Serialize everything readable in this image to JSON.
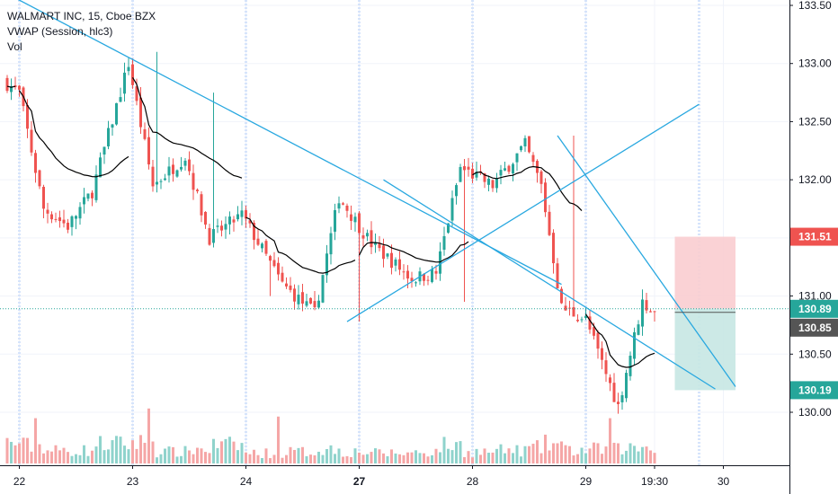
{
  "header": {
    "symbol_line": "WALMART INC, 15, Cboe BZX",
    "vwap_line": "VWAP (Session, hlc3)",
    "vol_line": "Vol"
  },
  "colors": {
    "up": "#26a69a",
    "down": "#ef5350",
    "vwap": "#000000",
    "trendline": "#29a8e0",
    "session_line": "#d6e4fb",
    "price_line": "#26a69a",
    "stop_zone": "#f9cdd0",
    "target_zone": "#c7e7e3"
  },
  "price_tags": {
    "stop": "131.51",
    "current": "130.89",
    "vwap": "130.85",
    "target": "130.19"
  },
  "chart_data": {
    "type": "candlestick",
    "title": "WALMART INC, 15, Cboe BZX",
    "y_ticks": [
      "133.50",
      "133.00",
      "132.50",
      "132.00",
      "131.50",
      "131.00",
      "130.50",
      "130.00"
    ],
    "ylim": [
      129.6,
      133.55
    ],
    "x_ticks": [
      {
        "label": "22",
        "bold": false,
        "bar": 3
      },
      {
        "label": "23",
        "bold": false,
        "bar": 31
      },
      {
        "label": "24",
        "bold": false,
        "bar": 59
      },
      {
        "label": "27",
        "bold": true,
        "bar": 87
      },
      {
        "label": "28",
        "bold": false,
        "bar": 115
      },
      {
        "label": "29",
        "bold": false,
        "bar": 143
      },
      {
        "label": "19:30",
        "bold": false,
        "bar": 160
      },
      {
        "label": "30",
        "bold": false,
        "bar": 177
      }
    ],
    "session_starts": [
      3,
      31,
      59,
      87,
      115,
      143,
      171
    ],
    "current_price": 130.89,
    "key_points": {
      "open": 132.9,
      "day23_high": 133.1,
      "day26_low": 130.78,
      "day28_high": 132.38,
      "day29_low": 129.92,
      "last": 130.85
    },
    "segments": [
      {
        "bars": 4,
        "start": 132.85,
        "end": 132.75,
        "vol": 1.6
      },
      {
        "bars": 6,
        "start": 132.75,
        "end": 131.75,
        "vol": 1.4
      },
      {
        "bars": 6,
        "start": 131.75,
        "end": 131.6,
        "vol": 1.0
      },
      {
        "bars": 6,
        "start": 131.6,
        "end": 131.9,
        "vol": 1.0
      },
      {
        "bars": 9,
        "start": 131.9,
        "end": 133.0,
        "vol": 1.5
      },
      {
        "bars": 6,
        "start": 133.0,
        "end": 131.95,
        "vol": 1.6
      },
      {
        "bars": 8,
        "start": 131.95,
        "end": 132.2,
        "vol": 0.9
      },
      {
        "bars": 6,
        "start": 132.2,
        "end": 131.5,
        "vol": 1.1
      },
      {
        "bars": 8,
        "start": 131.5,
        "end": 131.7,
        "vol": 1.4
      },
      {
        "bars": 10,
        "start": 131.7,
        "end": 131.1,
        "vol": 0.8
      },
      {
        "bars": 8,
        "start": 131.1,
        "end": 130.85,
        "vol": 0.9
      },
      {
        "bars": 6,
        "start": 130.85,
        "end": 131.85,
        "vol": 1.1
      },
      {
        "bars": 8,
        "start": 131.85,
        "end": 131.45,
        "vol": 0.9
      },
      {
        "bars": 10,
        "start": 131.45,
        "end": 131.15,
        "vol": 0.8
      },
      {
        "bars": 6,
        "start": 131.15,
        "end": 131.2,
        "vol": 0.9
      },
      {
        "bars": 6,
        "start": 131.2,
        "end": 132.1,
        "vol": 1.4
      },
      {
        "bars": 8,
        "start": 132.1,
        "end": 131.95,
        "vol": 0.9
      },
      {
        "bars": 8,
        "start": 131.95,
        "end": 132.3,
        "vol": 1.0
      },
      {
        "bars": 4,
        "start": 132.3,
        "end": 131.95,
        "vol": 1.2
      },
      {
        "bars": 5,
        "start": 131.95,
        "end": 130.9,
        "vol": 1.5
      },
      {
        "bars": 6,
        "start": 130.9,
        "end": 130.8,
        "vol": 1.0
      },
      {
        "bars": 8,
        "start": 130.8,
        "end": 130.05,
        "vol": 1.1
      },
      {
        "bars": 6,
        "start": 130.05,
        "end": 130.95,
        "vol": 1.2
      },
      {
        "bars": 3,
        "start": 130.95,
        "end": 130.85,
        "vol": 1.4
      }
    ],
    "volume_spikes": [
      {
        "bar": 7,
        "scale": 2.8
      },
      {
        "bar": 35,
        "scale": 3.4
      },
      {
        "bar": 67,
        "scale": 2.9
      },
      {
        "bar": 149,
        "scale": 2.8
      }
    ],
    "trendlines": [
      {
        "from": {
          "bar": 0,
          "price": 133.6
        },
        "to": {
          "bar": 137,
          "price": 131.1
        }
      },
      {
        "from": {
          "bar": 93,
          "price": 132.0
        },
        "to": {
          "bar": 175,
          "price": 130.2
        }
      },
      {
        "from": {
          "bar": 84,
          "price": 130.78
        },
        "to": {
          "bar": 171,
          "price": 132.65
        }
      },
      {
        "from": {
          "bar": 136,
          "price": 132.38
        },
        "to": {
          "bar": 180,
          "price": 130.22
        }
      }
    ],
    "position": {
      "entry": 130.89,
      "stop": 131.51,
      "target": 130.19,
      "start_bar": 165,
      "end_bar": 180
    }
  }
}
